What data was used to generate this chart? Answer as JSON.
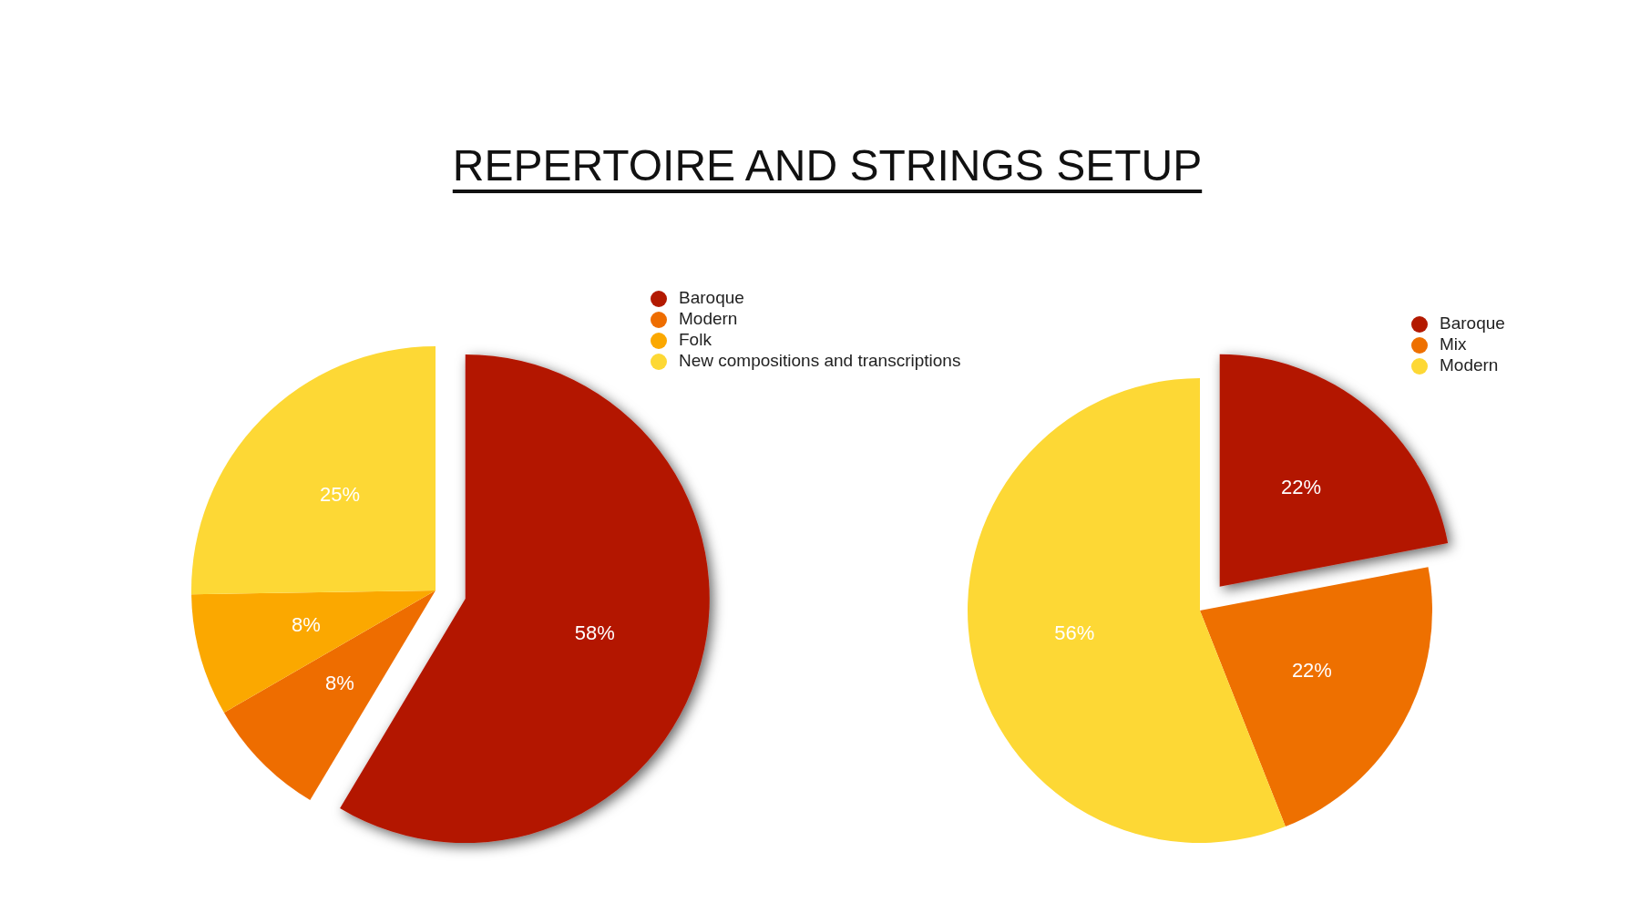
{
  "chart_data": [
    {
      "type": "pie",
      "title": "REPERTOIRE AND STRINGS SETUP",
      "categories": [
        "Baroque",
        "Modern",
        "Folk",
        "New compositions and transcriptions"
      ],
      "values": [
        58,
        8,
        8,
        25
      ],
      "value_labels": [
        "58%",
        "8%",
        "8%",
        "25%"
      ],
      "colors": [
        "#b31900",
        "#ee6d00",
        "#fba800",
        "#fdd835"
      ],
      "legend": "top right"
    },
    {
      "type": "pie",
      "categories": [
        "Baroque",
        "Mix",
        "Modern"
      ],
      "values": [
        22,
        22,
        56
      ],
      "value_labels": [
        "22%",
        "22%",
        "56%"
      ],
      "colors": [
        "#b31900",
        "#ee7000",
        "#fdd835"
      ],
      "legend": "top right"
    }
  ]
}
